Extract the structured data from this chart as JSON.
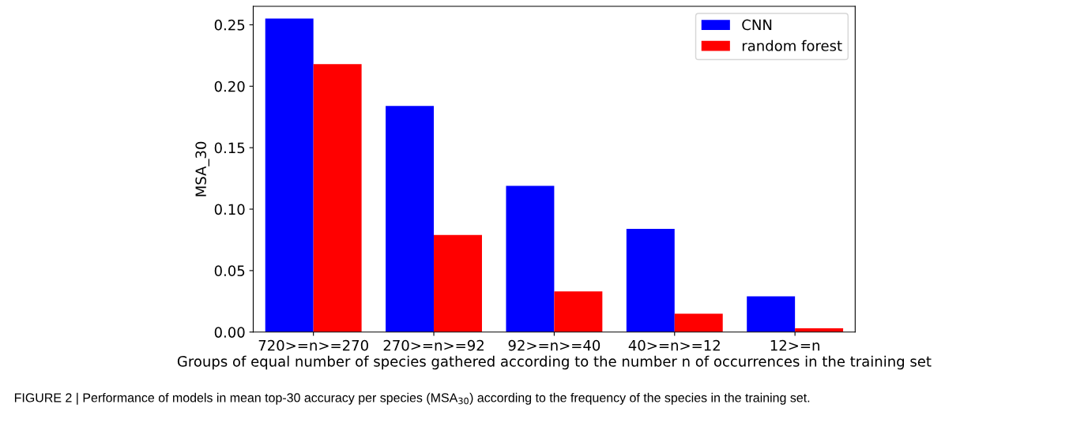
{
  "chart_data": {
    "type": "bar",
    "categories": [
      "720>=n>=270",
      "270>=n>=92",
      "92>=n>=40",
      "40>=n>=12",
      "12>=n"
    ],
    "series": [
      {
        "name": "CNN",
        "color": "#0000ff",
        "values": [
          0.255,
          0.184,
          0.119,
          0.084,
          0.029
        ]
      },
      {
        "name": "random forest",
        "color": "#ff0000",
        "values": [
          0.218,
          0.079,
          0.033,
          0.015,
          0.003
        ]
      }
    ],
    "xlabel": "Groups of equal number of species gathered according to the number n of occurrences in the training set",
    "ylabel": "MSA_30",
    "ylim": [
      0,
      0.265
    ],
    "yticks": [
      {
        "value": 0,
        "label": "0.00"
      },
      {
        "value": 0.05,
        "label": "0.05"
      },
      {
        "value": 0.1,
        "label": "0.10"
      },
      {
        "value": 0.15,
        "label": "0.15"
      },
      {
        "value": 0.2,
        "label": "0.20"
      },
      {
        "value": 0.25,
        "label": "0.25"
      }
    ],
    "legend": "top right",
    "grid": false,
    "annotations": [
      "FIGURE 2 | Performance of models in mean top-30 accuracy per species (MSA$_{30}$) according to the frequency of the species in the training set."
    ]
  }
}
